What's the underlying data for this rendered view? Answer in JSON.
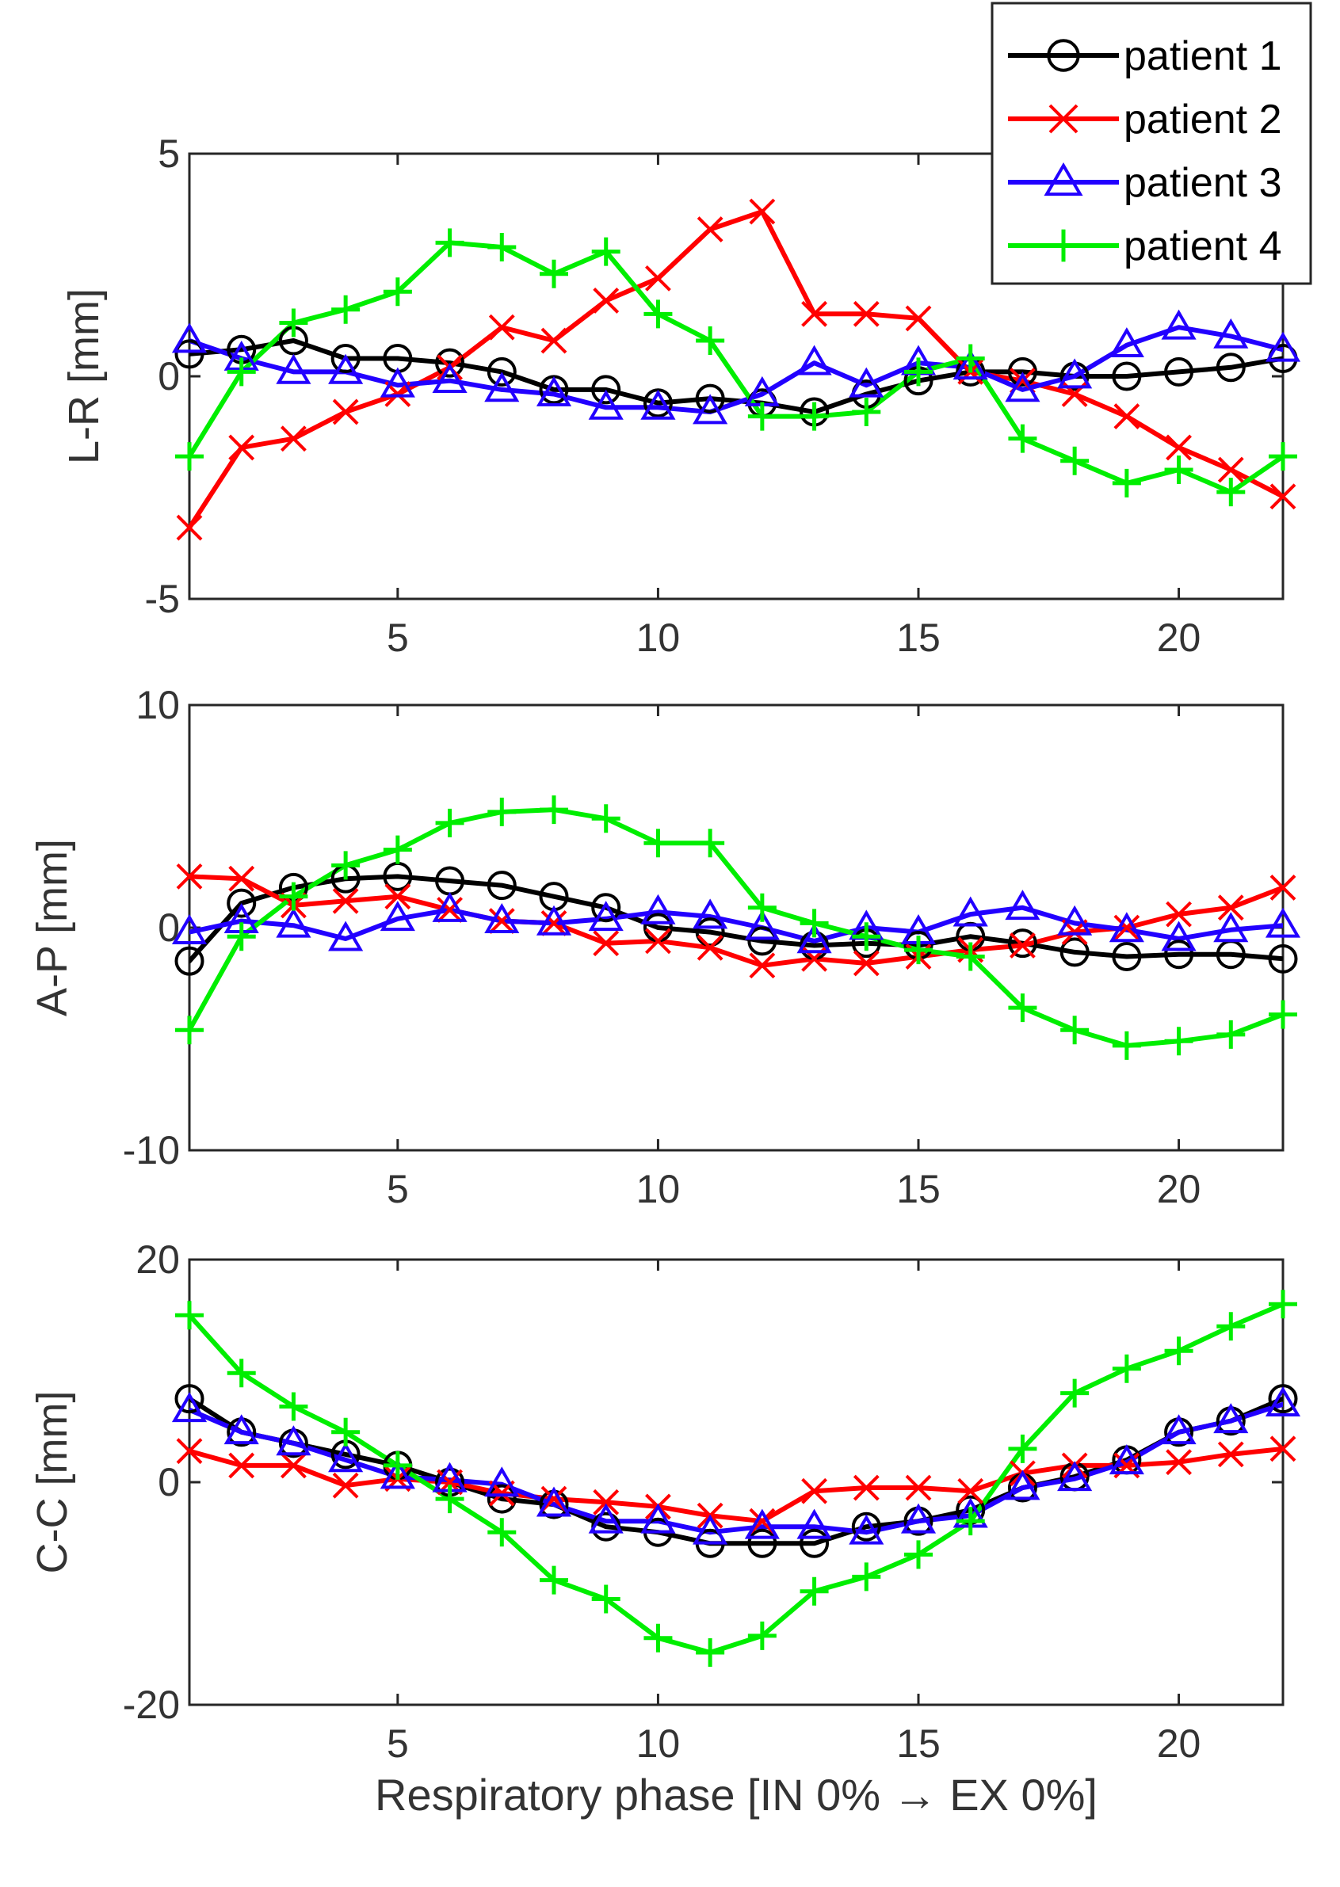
{
  "chart_data": {
    "type": "line",
    "xlabel": "Respiratory phase [IN 0% → EX 0%]",
    "x": [
      1,
      2,
      3,
      4,
      5,
      6,
      7,
      8,
      9,
      10,
      11,
      12,
      13,
      14,
      15,
      16,
      17,
      18,
      19,
      20,
      21,
      22
    ],
    "xlim": [
      1,
      22
    ],
    "xticks": [
      5,
      10,
      15,
      20
    ],
    "legend": {
      "placement": "top-right",
      "entries": [
        {
          "name": "patient 1",
          "color": "#000000",
          "marker": "circle"
        },
        {
          "name": "patient 2",
          "color": "#ff0000",
          "marker": "x"
        },
        {
          "name": "patient 3",
          "color": "#2200ff",
          "marker": "triangle"
        },
        {
          "name": "patient 4",
          "color": "#00ee00",
          "marker": "plus"
        }
      ]
    },
    "panels": [
      {
        "ylabel": "L-R [mm]",
        "ylim": [
          -5,
          5
        ],
        "yticks": [
          -5,
          0,
          5
        ],
        "series": [
          {
            "name": "patient 1",
            "values": [
              0.5,
              0.6,
              0.8,
              0.4,
              0.4,
              0.3,
              0.1,
              -0.3,
              -0.3,
              -0.6,
              -0.5,
              -0.6,
              -0.8,
              -0.4,
              -0.1,
              0.1,
              0.1,
              0.0,
              0.0,
              0.1,
              0.2,
              0.4
            ]
          },
          {
            "name": "patient 2",
            "values": [
              -3.4,
              -1.6,
              -1.4,
              -0.8,
              -0.4,
              0.2,
              1.1,
              0.8,
              1.7,
              2.2,
              3.3,
              3.7,
              1.4,
              1.4,
              1.3,
              0.1,
              -0.1,
              -0.4,
              -0.9,
              -1.6,
              -2.1,
              -2.7
            ]
          },
          {
            "name": "patient 3",
            "values": [
              0.8,
              0.4,
              0.1,
              0.1,
              -0.2,
              -0.1,
              -0.3,
              -0.4,
              -0.7,
              -0.7,
              -0.8,
              -0.4,
              0.3,
              -0.2,
              0.3,
              0.2,
              -0.3,
              0.0,
              0.7,
              1.1,
              0.9,
              0.6
            ]
          },
          {
            "name": "patient 4",
            "values": [
              -1.8,
              0.1,
              1.2,
              1.5,
              1.9,
              3.0,
              2.9,
              2.3,
              2.8,
              1.4,
              0.8,
              -0.9,
              -0.9,
              -0.8,
              0.1,
              0.4,
              -1.4,
              -1.9,
              -2.4,
              -2.1,
              -2.6,
              -1.8
            ]
          }
        ]
      },
      {
        "ylabel": "A-P [mm]",
        "ylim": [
          -10,
          10
        ],
        "yticks": [
          -10,
          0,
          10
        ],
        "series": [
          {
            "name": "patient 1",
            "values": [
              -1.5,
              1.1,
              1.8,
              2.2,
              2.3,
              2.1,
              1.9,
              1.4,
              0.9,
              0.0,
              -0.2,
              -0.6,
              -0.8,
              -0.7,
              -0.8,
              -0.4,
              -0.7,
              -1.1,
              -1.3,
              -1.2,
              -1.2,
              -1.4
            ]
          },
          {
            "name": "patient 2",
            "values": [
              2.3,
              2.2,
              1.0,
              1.2,
              1.4,
              0.8,
              0.3,
              0.2,
              -0.7,
              -0.6,
              -0.9,
              -1.7,
              -1.4,
              -1.6,
              -1.3,
              -1.0,
              -0.8,
              -0.2,
              0.0,
              0.6,
              0.9,
              1.8
            ]
          },
          {
            "name": "patient 3",
            "values": [
              -0.2,
              0.3,
              0.1,
              -0.5,
              0.4,
              0.8,
              0.3,
              0.2,
              0.4,
              0.7,
              0.5,
              0.0,
              -0.6,
              0.0,
              -0.2,
              0.6,
              0.9,
              0.2,
              -0.1,
              -0.5,
              -0.1,
              0.1
            ]
          },
          {
            "name": "patient 4",
            "values": [
              -4.6,
              -0.4,
              1.4,
              2.8,
              3.5,
              4.7,
              5.2,
              5.3,
              4.9,
              3.8,
              3.8,
              0.9,
              0.2,
              -0.4,
              -1.0,
              -1.3,
              -3.6,
              -4.6,
              -5.3,
              -5.1,
              -4.8,
              -3.9
            ]
          }
        ]
      },
      {
        "ylabel": "C-C [mm]",
        "ylim": [
          -20,
          20
        ],
        "yticks": [
          -20,
          0,
          20
        ],
        "series": [
          {
            "name": "patient 1",
            "values": [
              7.5,
              4.5,
              3.5,
              2.5,
              1.5,
              0.0,
              -1.5,
              -2.0,
              -4.0,
              -4.5,
              -5.5,
              -5.5,
              -5.5,
              -4.0,
              -3.5,
              -2.5,
              -0.5,
              0.5,
              2.0,
              4.5,
              5.5,
              7.5
            ]
          },
          {
            "name": "patient 2",
            "values": [
              2.8,
              1.5,
              1.5,
              -0.3,
              0.3,
              0.0,
              -1.0,
              -1.5,
              -1.8,
              -2.2,
              -3.0,
              -3.5,
              -0.8,
              -0.5,
              -0.5,
              -0.8,
              0.8,
              1.5,
              1.5,
              1.8,
              2.5,
              3.0
            ]
          },
          {
            "name": "patient 3",
            "values": [
              6.5,
              4.5,
              3.5,
              2.0,
              0.5,
              0.2,
              -0.2,
              -2.0,
              -3.5,
              -3.5,
              -4.5,
              -4.0,
              -4.0,
              -4.5,
              -3.5,
              -3.0,
              -0.5,
              0.3,
              1.8,
              4.5,
              5.5,
              7.0
            ]
          },
          {
            "name": "patient 4",
            "values": [
              15.0,
              9.8,
              6.8,
              4.5,
              1.5,
              -1.5,
              -4.5,
              -8.8,
              -10.5,
              -14.0,
              -15.3,
              -13.8,
              -9.8,
              -8.5,
              -6.5,
              -3.5,
              3.0,
              8.0,
              10.2,
              11.8,
              14.0,
              16.0
            ]
          }
        ]
      }
    ]
  }
}
